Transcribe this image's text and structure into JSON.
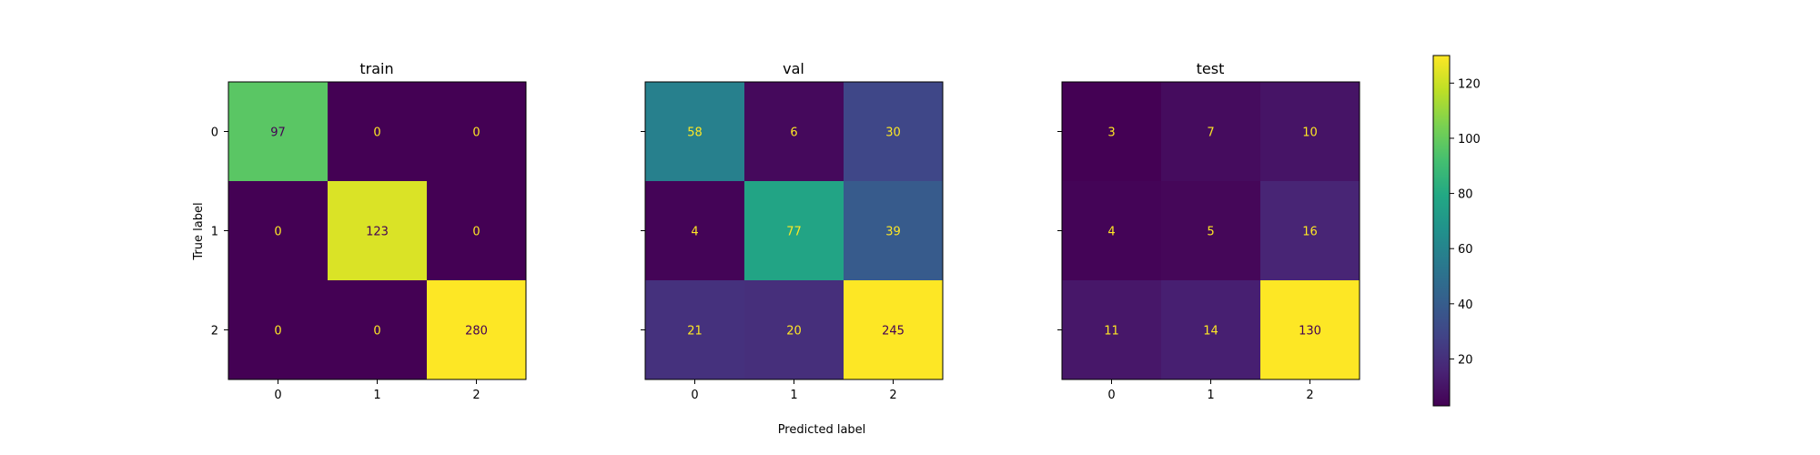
{
  "chart_data": {
    "type": "heatmap",
    "colormap": "viridis",
    "xlabel": "Predicted label",
    "ylabel": "True label",
    "panels": [
      {
        "title": "train",
        "x_ticks": [
          "0",
          "1",
          "2"
        ],
        "y_ticks": [
          "0",
          "1",
          "2"
        ],
        "matrix": [
          [
            97,
            0,
            0
          ],
          [
            0,
            123,
            0
          ],
          [
            0,
            0,
            280
          ]
        ]
      },
      {
        "title": "val",
        "x_ticks": [
          "0",
          "1",
          "2"
        ],
        "y_ticks": [
          "0",
          "1",
          "2"
        ],
        "matrix": [
          [
            58,
            6,
            30
          ],
          [
            4,
            77,
            39
          ],
          [
            21,
            20,
            245
          ]
        ]
      },
      {
        "title": "test",
        "x_ticks": [
          "0",
          "1",
          "2"
        ],
        "y_ticks": [
          "0",
          "1",
          "2"
        ],
        "matrix": [
          [
            3,
            7,
            10
          ],
          [
            4,
            5,
            16
          ],
          [
            11,
            14,
            130
          ]
        ]
      }
    ],
    "colorbar": {
      "range": [
        3,
        130
      ],
      "ticks": [
        20,
        40,
        60,
        80,
        100,
        120
      ]
    },
    "text_colors": {
      "light": "#fde725",
      "dark": "#440154"
    }
  }
}
